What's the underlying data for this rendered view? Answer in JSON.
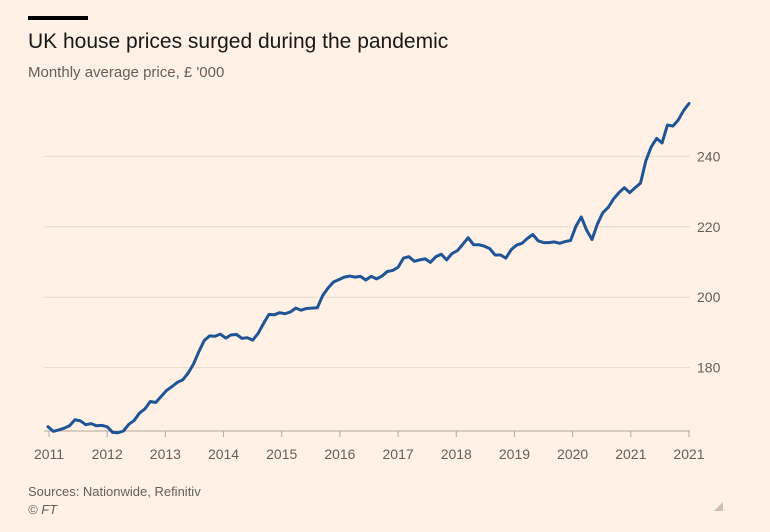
{
  "header": {
    "title": "UK house prices surged during the pandemic",
    "subtitle": "Monthly average price, £ '000"
  },
  "footer": {
    "source": "Sources: Nationwide, Refinitiv",
    "copyright": "© FT"
  },
  "chart_data": {
    "type": "line",
    "title": "UK house prices surged during the pandemic",
    "subtitle": "Monthly average price, £ '000",
    "xlabel": "",
    "ylabel": "",
    "x_ticks": [
      "2011",
      "2012",
      "2013",
      "2014",
      "2015",
      "2016",
      "2017",
      "2018",
      "2019",
      "2020",
      "2021",
      "2021"
    ],
    "y_ticks": [
      180,
      200,
      220,
      240
    ],
    "ylim": [
      162,
      256
    ],
    "xlim": [
      2011.0,
      2021.0
    ],
    "grid": true,
    "y_axis_side": "right",
    "line_color": "#1f5496",
    "series": [
      {
        "values": [
          163.2,
          161.9,
          162.3,
          162.8,
          163.5,
          165.2,
          164.9,
          163.8,
          164.1,
          163.5,
          163.6,
          163.2,
          161.6,
          161.5,
          162.0,
          163.9,
          165.0,
          167.1,
          168.3,
          170.4,
          170.1,
          171.8,
          173.5,
          174.6,
          175.8,
          176.5,
          178.4,
          181.0,
          184.5,
          187.7,
          189.0,
          188.9,
          189.5,
          188.4,
          189.3,
          189.4,
          188.3,
          188.5,
          187.8,
          189.7,
          192.5,
          195.1,
          195.0,
          195.6,
          195.3,
          195.8,
          196.9,
          196.3,
          196.8,
          196.9,
          197.0,
          200.5,
          202.6,
          204.3,
          205.0,
          205.7,
          206.0,
          205.7,
          205.9,
          204.9,
          205.9,
          205.2,
          206.0,
          207.3,
          207.6,
          208.5,
          211.1,
          211.5,
          210.2,
          210.6,
          210.9,
          209.9,
          211.5,
          212.2,
          210.6,
          212.4,
          213.2,
          215.0,
          216.9,
          214.9,
          214.9,
          214.5,
          213.8,
          212.0,
          212.0,
          211.1,
          213.5,
          214.8,
          215.3,
          216.7,
          217.8,
          216.0,
          215.5,
          215.5,
          215.7,
          215.3,
          215.8,
          216.1,
          220.1,
          222.8,
          219.0,
          216.4,
          220.8,
          224.0,
          225.5,
          227.9,
          229.7,
          231.1,
          229.7,
          231.1,
          232.4,
          238.8,
          242.7,
          245.1,
          243.8,
          248.9,
          248.6,
          250.3,
          253.0,
          255.0
        ]
      }
    ]
  }
}
